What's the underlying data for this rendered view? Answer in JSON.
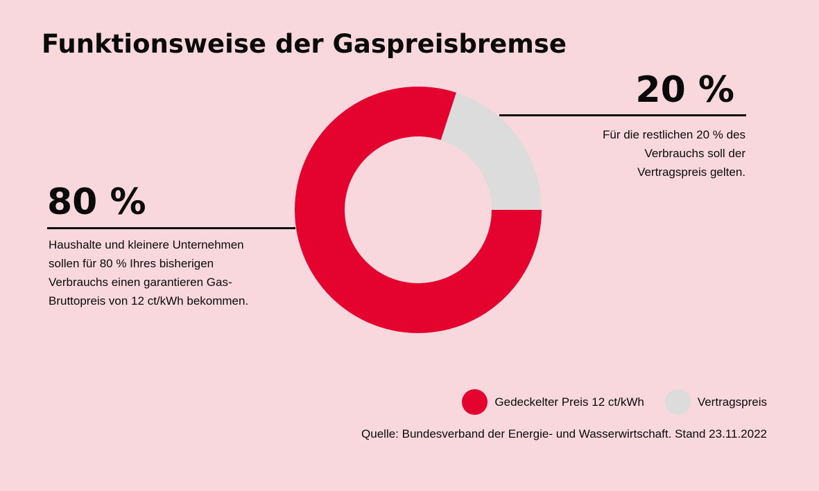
{
  "title": "Funktionsweise der Gaspreisbremse",
  "colors": {
    "background": "#f8d7dd",
    "capped": "#e4032e",
    "contract": "#dcdcdc",
    "text": "#0a0a0a"
  },
  "chart_data": {
    "type": "pie",
    "donut": true,
    "categories": [
      "Gedeckelter Preis 12 ct/kWh",
      "Vertragspreis"
    ],
    "values": [
      80,
      20
    ],
    "colors": [
      "#e4032e",
      "#dcdcdc"
    ],
    "legend_position": "bottom-right"
  },
  "annotations": {
    "left": {
      "value": "80 %",
      "lines": [
        "Haushalte und kleinere Unternehmen",
        "sollen für 80 % Ihres bisherigen",
        "Verbrauchs einen garantieren Gas-",
        "Bruttopreis von 12  ct/kWh bekommen."
      ]
    },
    "right": {
      "value": "20 %",
      "lines": [
        "Für die restlichen 20 % des",
        "Verbrauchs soll der",
        "Vertragspreis gelten."
      ]
    }
  },
  "legend": [
    {
      "label": "Gedeckelter Preis 12 ct/kWh",
      "color": "#e4032e"
    },
    {
      "label": "Vertragspreis",
      "color": "#dcdcdc"
    }
  ],
  "source": "Quelle: Bundesverband der Energie- und Wasserwirtschaft. Stand 23.11.2022"
}
